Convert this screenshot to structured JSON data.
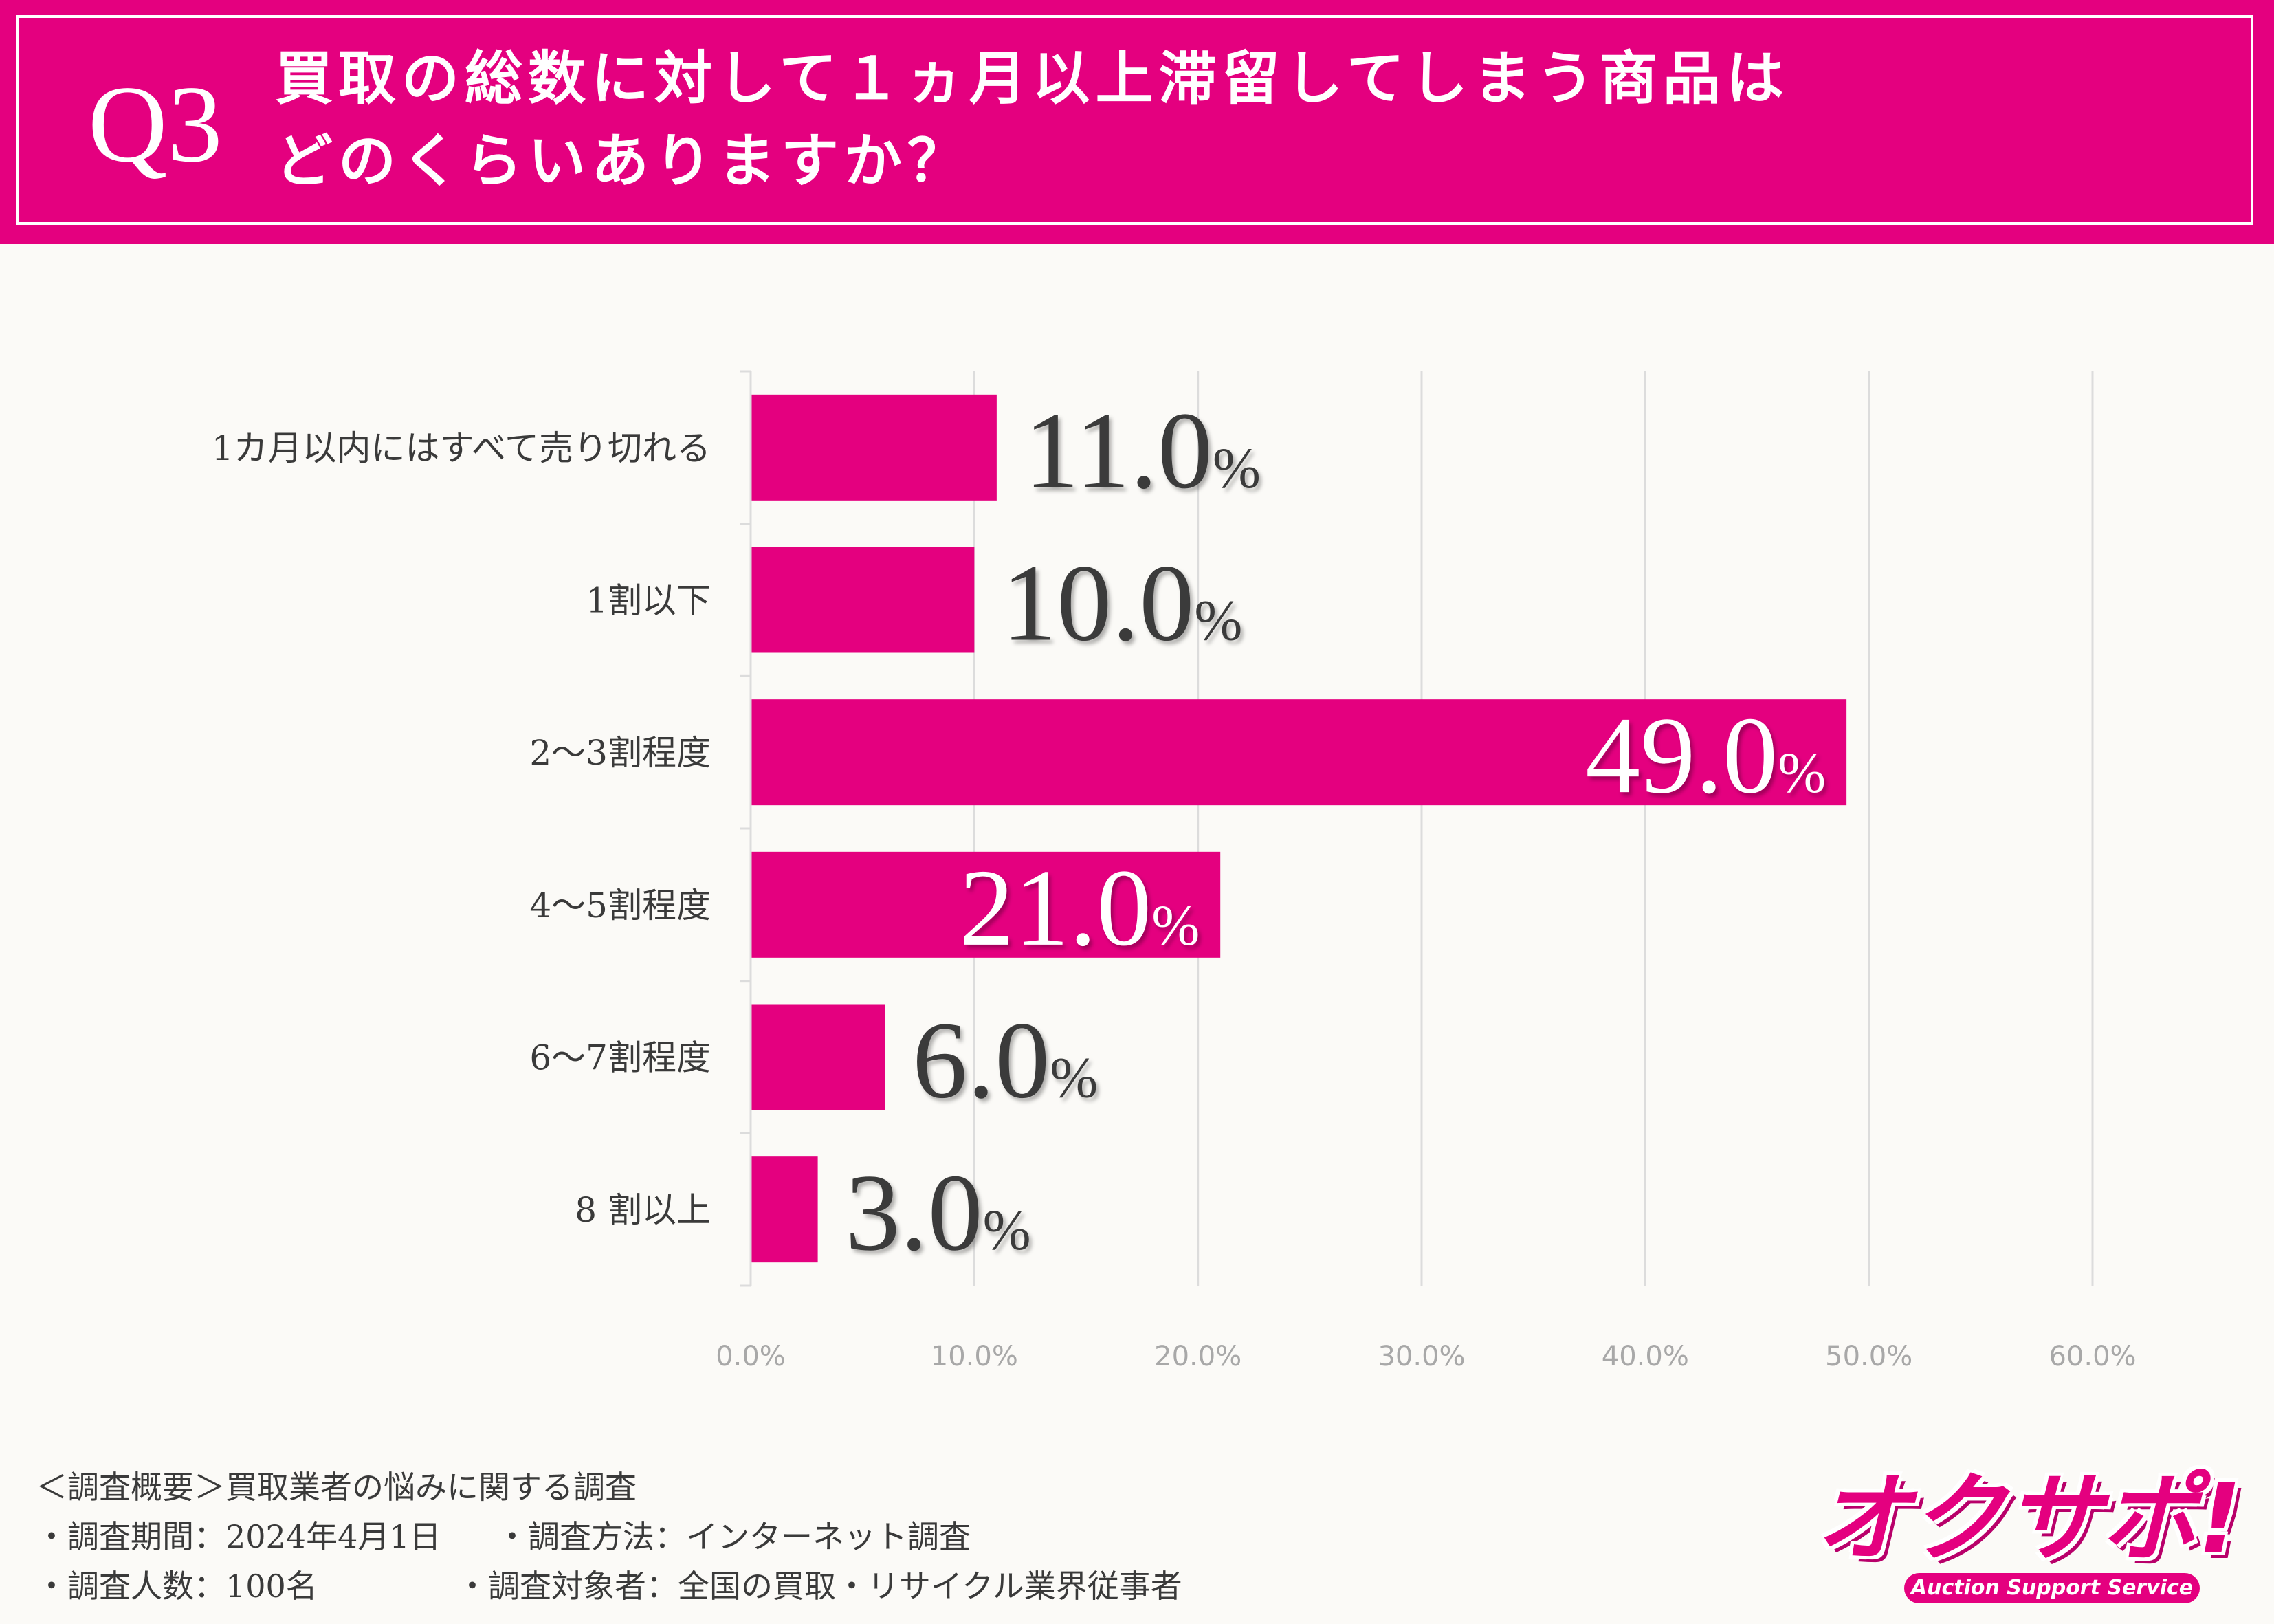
{
  "header": {
    "q_label": "Q3",
    "title_line1": "買取の総数に対して１ヵ月以上滞留してしまう商品は",
    "title_line2": "どのくらいありますか？"
  },
  "colors": {
    "accent": "#e4007f",
    "label_dark": "#3a3a3a",
    "label_light": "#ffffff",
    "grid": "#dcdcdc",
    "tick_text": "#a8a8a8"
  },
  "chart_data": {
    "type": "bar",
    "orientation": "horizontal",
    "categories": [
      "1カ月以内にはすべて売り切れる",
      "1割以下",
      "2〜3割程度",
      "4〜5割程度",
      "6〜7割程度",
      "8 割以上"
    ],
    "values": [
      11.0,
      10.0,
      49.0,
      21.0,
      6.0,
      3.0
    ],
    "value_labels": [
      "11.0",
      "10.0",
      "49.0",
      "21.0",
      "6.0",
      "3.0"
    ],
    "value_unit": "%",
    "label_inside_bar": [
      false,
      false,
      true,
      true,
      false,
      false
    ],
    "xlim": [
      0,
      60
    ],
    "ticks": [
      0,
      10,
      20,
      30,
      40,
      50,
      60
    ],
    "tick_labels": [
      "0.0%",
      "10.0%",
      "20.0%",
      "30.0%",
      "40.0%",
      "50.0%",
      "60.0%"
    ],
    "grid": true,
    "title": "",
    "xlabel": "",
    "ylabel": ""
  },
  "footer": {
    "note_heading": "＜調査概要＞買取業者の悩みに関する調査",
    "period": "・調査期間：2024年4月1日",
    "method": "・調査方法：インターネット調査",
    "count": "・調査人数：100名",
    "target": "・調査対象者：全国の買取・リサイクル業界従事者"
  },
  "logo": {
    "text": "オクサポ!",
    "subtitle": "Auction Support Service"
  }
}
